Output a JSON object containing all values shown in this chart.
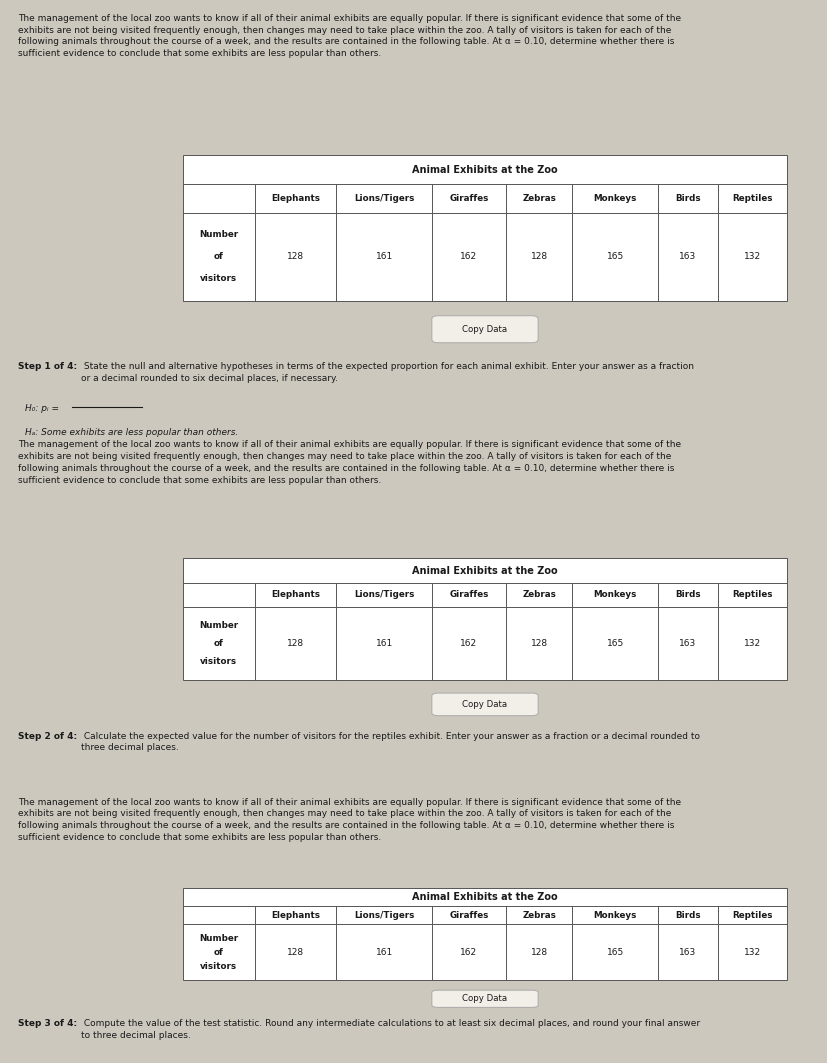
{
  "bg_color": "#ccc8be",
  "panel_bg": "#eae6dd",
  "panel_border": "#aaaaaa",
  "text_color": "#1a1a1a",
  "intro_text": "The management of the local zoo wants to know if all of their animal exhibits are equally popular. If there is significant evidence that some of the\nexhibits are not being visited frequently enough, then changes may need to take place within the zoo. A tally of visitors is taken for each of the\nfollowing animals throughout the course of a week, and the results are contained in the following table. At α = 0.10, determine whether there is\nsufficient evidence to conclude that some exhibits are less popular than others.",
  "table_title": "Animal Exhibits at the Zoo",
  "col_headers": [
    "Elephants",
    "Lions/Tigers",
    "Giraffes",
    "Zebras",
    "Monkeys",
    "Birds",
    "Reptiles"
  ],
  "row_label_lines": [
    "Number",
    "of",
    "visitors"
  ],
  "visitor_values": [
    "128",
    "161",
    "162",
    "128",
    "165",
    "163",
    "132"
  ],
  "copy_data_label": "Copy Data",
  "step1_label": "Step 1 of 4:",
  "step1_body": " State the null and alternative hypotheses in terms of the expected proportion for each animal exhibit. Enter your answer as a fraction\nor a decimal rounded to six decimal places, if necessary.",
  "step1_h0": "H₀: pᵢ =",
  "step1_ha": "Hₐ: Some exhibits are less popular than others.",
  "step2_label": "Step 2 of 4:",
  "step2_body": " Calculate the expected value for the number of visitors for the reptiles exhibit. Enter your answer as a fraction or a decimal rounded to\nthree decimal places.",
  "step3_label": "Step 3 of 4:",
  "step3_body": " Compute the value of the test statistic. Round any intermediate calculations to at least six decimal places, and round your final answer\nto three decimal places."
}
